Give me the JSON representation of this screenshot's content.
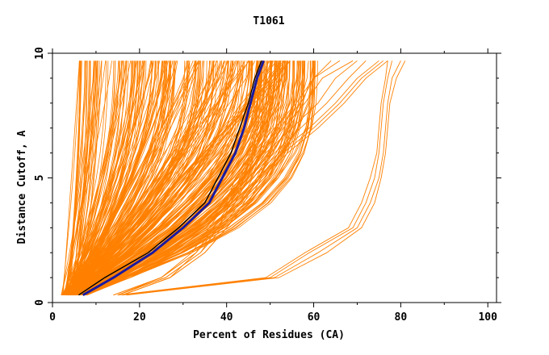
{
  "chart_data": {
    "type": "line",
    "title": "T1061",
    "xlabel": "Percent of Residues (CA)",
    "ylabel": "Distance Cutoff, A",
    "xlim": [
      0,
      102
    ],
    "ylim": [
      0,
      10
    ],
    "x_ticks": [
      0,
      20,
      40,
      60,
      80,
      100
    ],
    "y_ticks": [
      0,
      5,
      10
    ],
    "x_tick_labels": [
      "0",
      "20",
      "40",
      "60",
      "80",
      "100"
    ],
    "y_tick_labels": [
      "0",
      "5",
      "10"
    ],
    "grid": false,
    "legend": "none",
    "colors": {
      "models": "#ff8000",
      "highlight_1": "#1a1aa0",
      "highlight_2": "#000000"
    },
    "y_levels": [
      0.3,
      1,
      2,
      3,
      4,
      5,
      6,
      7,
      8,
      9,
      9.7
    ],
    "model_families": [
      {
        "count": 230,
        "x_start_range": [
          2,
          5.5
        ],
        "x_end_range": [
          6,
          55
        ],
        "shape_range": [
          1.0,
          2.5
        ]
      },
      {
        "count": 90,
        "x_start_range": [
          3,
          8
        ],
        "x_end_range": [
          45,
          61
        ],
        "shape_range": [
          1.8,
          3.5
        ]
      }
    ],
    "series": [
      {
        "x": [
          15,
          25,
          33,
          37,
          41,
          43,
          47,
          52,
          57,
          60,
          66
        ],
        "y": [
          0.3,
          1,
          2,
          3,
          4,
          5,
          6,
          7,
          8,
          9,
          9.7
        ]
      },
      {
        "x": [
          16,
          27,
          33,
          37,
          42,
          44,
          48,
          53,
          58,
          62,
          69
        ],
        "y": [
          0.3,
          1,
          2,
          3,
          4,
          5,
          6,
          7,
          8,
          9,
          9.7
        ]
      },
      {
        "x": [
          15,
          26,
          34,
          38,
          41,
          44,
          49,
          55,
          61,
          65,
          70
        ],
        "y": [
          0.3,
          1,
          2,
          3,
          4,
          5,
          6,
          7,
          8,
          9,
          9.7
        ]
      },
      {
        "x": [
          14,
          25,
          32,
          36,
          40,
          42,
          46,
          51,
          56,
          60,
          64
        ],
        "y": [
          0.3,
          1,
          2,
          3,
          4,
          5,
          6,
          7,
          8,
          9,
          9.7
        ]
      },
      {
        "x": [
          16,
          27,
          35,
          40,
          44,
          47,
          53,
          60,
          66,
          71,
          76
        ],
        "y": [
          0.3,
          1,
          2,
          3,
          4,
          5,
          6,
          7,
          8,
          9,
          9.7
        ]
      },
      {
        "x": [
          15,
          26,
          34,
          39,
          43,
          46,
          52,
          59,
          65,
          70,
          75
        ],
        "y": [
          0.3,
          1,
          2,
          3,
          4,
          5,
          6,
          7,
          8,
          9,
          9.7
        ]
      },
      {
        "x": [
          16,
          27,
          35,
          40,
          45,
          48,
          54,
          61,
          67,
          72,
          77
        ],
        "y": [
          0.3,
          1,
          2,
          3,
          4,
          5,
          6,
          7,
          8,
          9,
          9.7
        ]
      },
      {
        "x": [
          14,
          25,
          33,
          38,
          42,
          45,
          51,
          57,
          63,
          68,
          72
        ],
        "y": [
          0.3,
          1,
          2,
          3,
          4,
          5,
          6,
          7,
          8,
          9,
          9.7
        ]
      },
      {
        "x": [
          17,
          51,
          61,
          70,
          73,
          75,
          76,
          76.5,
          77,
          78,
          80
        ],
        "y": [
          0.3,
          1,
          2,
          3,
          4,
          5,
          6,
          7,
          8,
          9,
          9.7
        ]
      },
      {
        "x": [
          16,
          50,
          59,
          69,
          72,
          74,
          75,
          75.5,
          76,
          77,
          78
        ],
        "y": [
          0.3,
          1,
          2,
          3,
          4,
          5,
          6,
          7,
          8,
          9,
          9.7
        ]
      },
      {
        "x": [
          17,
          52,
          63,
          71,
          74,
          75.5,
          76.5,
          77,
          77.5,
          79,
          81
        ],
        "y": [
          0.3,
          1,
          2,
          3,
          4,
          5,
          6,
          7,
          8,
          9,
          9.7
        ]
      },
      {
        "x": [
          15,
          49,
          58,
          68,
          71,
          73,
          74.5,
          75,
          75.5,
          76.5,
          77
        ],
        "y": [
          0.3,
          1,
          2,
          3,
          4,
          5,
          6,
          7,
          8,
          9,
          9.7
        ]
      },
      {
        "x": [
          7,
          14,
          23,
          30,
          36,
          39,
          42,
          44,
          45.5,
          47,
          48.5
        ],
        "y": [
          0.3,
          1,
          2,
          3,
          4,
          5,
          6,
          7,
          8,
          9,
          9.7
        ],
        "highlight": 1
      },
      {
        "x": [
          6,
          12,
          22,
          29,
          35,
          38,
          41,
          43,
          45,
          46.5,
          48
        ],
        "y": [
          0.3,
          1,
          2,
          3,
          4,
          5,
          6,
          7,
          8,
          9,
          9.7
        ],
        "highlight": 2
      }
    ]
  }
}
